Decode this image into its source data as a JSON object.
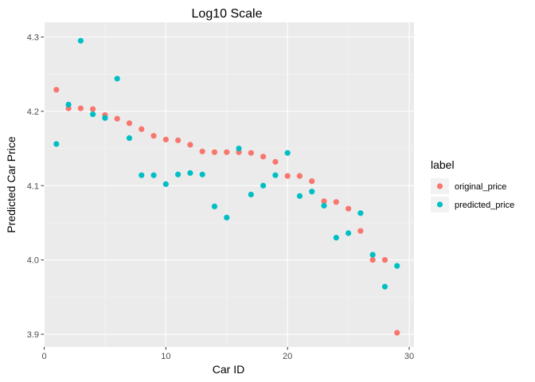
{
  "chart_data": {
    "type": "scatter",
    "title": "Log10 Scale",
    "xlabel": "Car ID",
    "ylabel": "Predicted Car Price",
    "xlim": [
      0,
      30
    ],
    "ylim": [
      3.9,
      4.3
    ],
    "x_ticks": [
      0,
      10,
      20,
      30
    ],
    "y_ticks": [
      3.9,
      4.0,
      4.1,
      4.2,
      4.3
    ],
    "x_tick_labels": [
      "0",
      "10",
      "20",
      "30"
    ],
    "y_tick_labels": [
      "3.9",
      "4.0",
      "4.1",
      "4.2",
      "4.3"
    ],
    "grid": true,
    "background": "#EBEBEB",
    "legend": {
      "title": "label",
      "position": "right"
    },
    "x": [
      1,
      2,
      3,
      4,
      5,
      6,
      7,
      8,
      9,
      10,
      11,
      12,
      13,
      14,
      15,
      16,
      17,
      18,
      19,
      20,
      21,
      22,
      23,
      24,
      25,
      26,
      27,
      28,
      29
    ],
    "series": [
      {
        "name": "original_price",
        "color": "#F8766D",
        "values": [
          4.229,
          4.204,
          4.204,
          4.203,
          4.195,
          4.19,
          4.184,
          4.176,
          4.167,
          4.162,
          4.161,
          4.155,
          4.146,
          4.145,
          4.145,
          4.145,
          4.144,
          4.139,
          4.132,
          4.113,
          4.113,
          4.106,
          4.079,
          4.078,
          4.069,
          4.039,
          4.0,
          4.0,
          3.902
        ]
      },
      {
        "name": "predicted_price",
        "color": "#00BFC4",
        "values": [
          4.156,
          4.209,
          4.295,
          4.196,
          4.191,
          4.244,
          4.164,
          4.114,
          4.114,
          4.102,
          4.115,
          4.117,
          4.115,
          4.072,
          4.057,
          4.15,
          4.088,
          4.1,
          4.114,
          4.144,
          4.086,
          4.092,
          4.073,
          4.03,
          4.036,
          4.063,
          4.007,
          3.964,
          3.992
        ]
      }
    ]
  }
}
